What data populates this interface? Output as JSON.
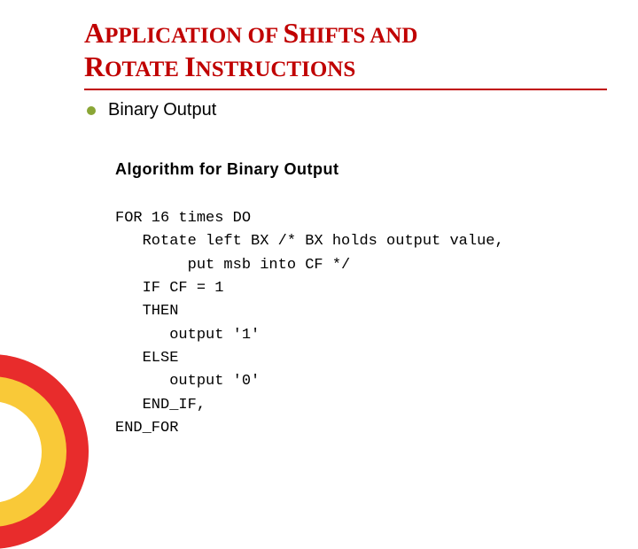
{
  "title": {
    "line1_big1": "A",
    "line1_small1": "PPLICATION OF ",
    "line1_big2": "S",
    "line1_small2": "HIFTS AND",
    "line2_big1": "R",
    "line2_small1": "OTATE ",
    "line2_big2": "I",
    "line2_small2": "NSTRUCTIONS"
  },
  "bullet_label": "Binary Output",
  "algorithm": {
    "heading": "Algorithm for Binary Output",
    "l1": "FOR 16 times DO",
    "l2": "   Rotate left BX /* BX holds output value,",
    "l3": "        put msb into CF */",
    "l4": "   IF CF = 1",
    "l5": "   THEN",
    "l6": "      output '1'",
    "l7": "   ELSE",
    "l8": "      output '0'",
    "l9": "   END_IF,",
    "l10": "END_FOR"
  },
  "colors": {
    "title_color": "#c00000",
    "bullet_color": "#8aa636",
    "circle_outer": "#e82c2c",
    "circle_mid": "#f9c938",
    "circle_inner": "#ffffff",
    "background": "#ffffff"
  }
}
